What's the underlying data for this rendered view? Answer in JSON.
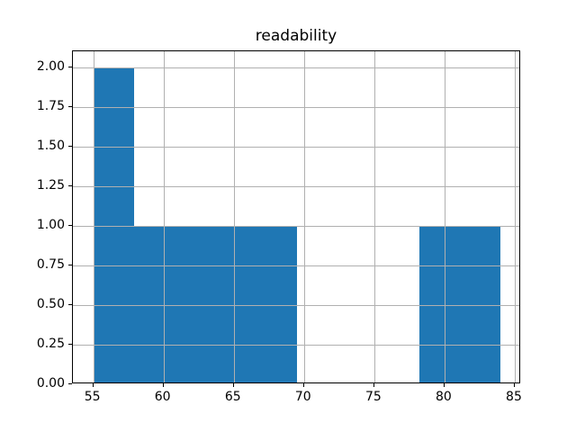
{
  "figure": {
    "background": "#ffffff"
  },
  "chart_data": {
    "type": "histogram",
    "title": "readability",
    "xlabel": "",
    "ylabel": "",
    "bin_edges": [
      55.0,
      57.9,
      60.8,
      63.7,
      66.6,
      69.5,
      72.4,
      75.3,
      78.2,
      81.1,
      84.0
    ],
    "counts": [
      2,
      1,
      1,
      1,
      1,
      0,
      0,
      0,
      1,
      1
    ],
    "xlim": [
      53.55,
      85.45
    ],
    "ylim": [
      0,
      2.1
    ],
    "x_tick_values": [
      55,
      60,
      65,
      70,
      75,
      80,
      85
    ],
    "x_tick_labels": [
      "55",
      "60",
      "65",
      "70",
      "75",
      "80",
      "85"
    ],
    "y_tick_values": [
      0.0,
      0.25,
      0.5,
      0.75,
      1.0,
      1.25,
      1.5,
      1.75,
      2.0
    ],
    "y_tick_labels": [
      "0.00",
      "0.25",
      "0.50",
      "0.75",
      "1.00",
      "1.25",
      "1.50",
      "1.75",
      "2.00"
    ],
    "grid": true,
    "legend_position": "none",
    "bar_color": "#1f77b4",
    "grid_color": "#b0b0b0",
    "spine_color": "#000000",
    "text_color": "#000000"
  }
}
